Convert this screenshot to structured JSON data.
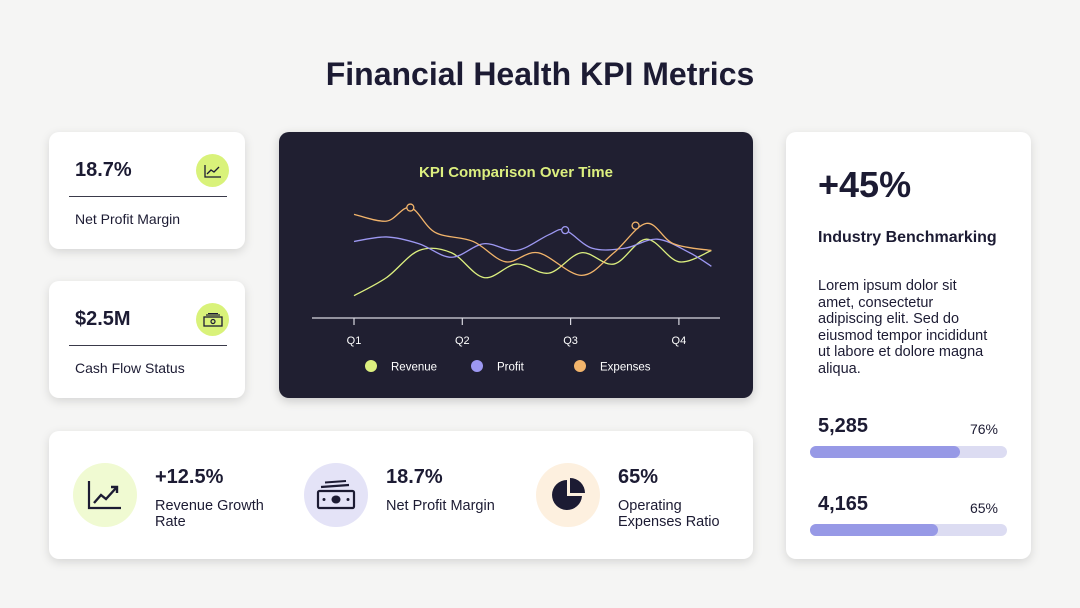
{
  "title": "Financial Health KPI Metrics",
  "kpis": [
    {
      "value": "18.7%",
      "label": "Net Profit Margin",
      "icon": "line-chart-icon"
    },
    {
      "value": "$2.5M",
      "label": "Cash Flow Status",
      "icon": "cash-icon"
    }
  ],
  "chart_data": {
    "type": "line",
    "title": "KPI Comparison Over Time",
    "categories": [
      "Q1",
      "Q2",
      "Q3",
      "Q4"
    ],
    "ylim": [
      0,
      100
    ],
    "grid": false,
    "legend_position": "bottom",
    "series": [
      {
        "name": "Revenue",
        "color": "#dcef7f",
        "x": [
          0,
          0.3,
          0.6,
          0.9,
          1.2,
          1.5,
          1.8,
          2.1,
          2.4,
          2.7,
          3.0,
          3.3
        ],
        "y": [
          10,
          26,
          50,
          48,
          26,
          38,
          30,
          48,
          38,
          60,
          40,
          50
        ]
      },
      {
        "name": "Profit",
        "color": "#9d98f2",
        "x": [
          0,
          0.3,
          0.6,
          0.9,
          1.2,
          1.5,
          1.8,
          1.95,
          2.2,
          2.5,
          2.8,
          3.1,
          3.3
        ],
        "y": [
          58,
          62,
          56,
          44,
          56,
          50,
          64,
          68,
          52,
          52,
          60,
          48,
          36
        ]
      },
      {
        "name": "Expenses",
        "color": "#f2b46b",
        "x": [
          0,
          0.3,
          0.52,
          0.75,
          1.1,
          1.4,
          1.7,
          2.1,
          2.4,
          2.7,
          2.95,
          3.3
        ],
        "y": [
          82,
          76,
          88,
          66,
          58,
          40,
          48,
          28,
          48,
          74,
          56,
          50
        ]
      }
    ],
    "markers": [
      {
        "series": "Expenses",
        "x": 0.52,
        "y": 88
      },
      {
        "series": "Profit",
        "x": 1.95,
        "y": 68
      },
      {
        "series": "Expenses",
        "x": 2.6,
        "y": 72
      }
    ]
  },
  "benchmark": {
    "value": "+45%",
    "label": "Industry Benchmarking",
    "body": "Lorem ipsum dolor sit amet, consectetur adipiscing elit. Sed do eiusmod tempor incididunt ut labore et dolore magna aliqua.",
    "stats": [
      {
        "value": "5,285",
        "percent": "76%",
        "fill": 0.76
      },
      {
        "value": "4,165",
        "percent": "65%",
        "fill": 0.65
      }
    ]
  },
  "metrics": [
    {
      "value": "+12.5%",
      "label": "Revenue Growth Rate",
      "icon": "growth-chart-icon",
      "color": "#f0fad2"
    },
    {
      "value": "18.7%",
      "label": "Net Profit Margin",
      "icon": "money-icon",
      "color": "#e4e3f7"
    },
    {
      "value": "65%",
      "label": "Operating Expenses Ratio",
      "icon": "pie-chart-icon",
      "color": "#fdf0df"
    }
  ]
}
